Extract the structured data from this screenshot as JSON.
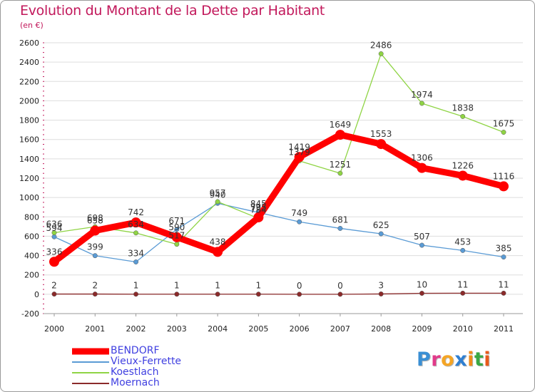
{
  "header": {
    "title": "Evolution du Montant de la Dette par Habitant",
    "subtitle": "(en €)"
  },
  "logo": {
    "text": "Proxiti",
    "colors": [
      "#3a8fd4",
      "#e23a8a",
      "#f5a524",
      "#2f7fd1",
      "#f08c1a",
      "#3aa844",
      "#e85a1b"
    ]
  },
  "colors": {
    "title": "#c2185b",
    "legend_text": "#3f3fe0",
    "axis_text": "#222222",
    "grid": "#dddddd"
  },
  "chart_data": {
    "type": "line",
    "title": "Evolution du Montant de la Dette par Habitant",
    "subtitle": "(en €)",
    "xlabel": "",
    "ylabel": "",
    "x": [
      "2000",
      "2001",
      "2002",
      "2003",
      "2004",
      "2005",
      "2006",
      "2007",
      "2008",
      "2009",
      "2010",
      "2011"
    ],
    "ylim": [
      -200,
      2600
    ],
    "yticks": [
      -200,
      0,
      200,
      400,
      600,
      800,
      1000,
      1200,
      1400,
      1600,
      1800,
      2000,
      2200,
      2400,
      2600
    ],
    "grid": true,
    "legend_position": "bottom-left",
    "series": [
      {
        "name": "BENDORF",
        "color": "#ff0000",
        "emphasis": true,
        "values": [
          336,
          658,
          742,
          590,
          438,
          795,
          1419,
          1649,
          1553,
          1306,
          1226,
          1116
        ],
        "labels": [
          "336",
          "658",
          "742",
          "590",
          "438",
          "795",
          "1419",
          "1649",
          "1553",
          "1306",
          "1226",
          "1116"
        ]
      },
      {
        "name": "Vieux-Ferrette",
        "color": "#5a9bd5",
        "emphasis": false,
        "values": [
          594,
          399,
          334,
          671,
          940,
          845,
          749,
          681,
          625,
          507,
          453,
          385
        ],
        "labels": [
          "594",
          "399",
          "334",
          "671",
          "940",
          "845",
          "749",
          "681",
          "625",
          "507",
          "453",
          "385"
        ]
      },
      {
        "name": "Koestlach",
        "color": "#8fd444",
        "emphasis": false,
        "values": [
          636,
          698,
          634,
          517,
          957,
          784,
          1379,
          1251,
          2486,
          1974,
          1838,
          1675
        ],
        "labels": [
          "636",
          "698",
          "634",
          "517",
          "957",
          "784",
          "1379",
          "1251",
          "2486",
          "1974",
          "1838",
          "1675"
        ]
      },
      {
        "name": "Moernach",
        "color": "#8b2a2a",
        "emphasis": false,
        "values": [
          2,
          2,
          1,
          1,
          1,
          1,
          0,
          0,
          3,
          10,
          11,
          11
        ],
        "labels": [
          "2",
          "2",
          "1",
          "1",
          "1",
          "1",
          "0",
          "0",
          "3",
          "10",
          "11",
          "11"
        ]
      }
    ]
  }
}
